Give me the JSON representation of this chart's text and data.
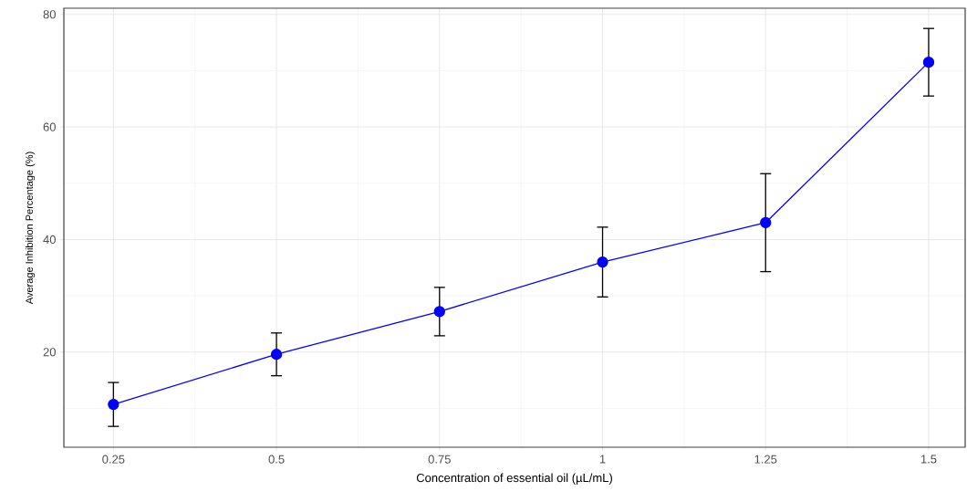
{
  "chart_data": {
    "type": "line",
    "xlabel": "Concentration of essential oil (µL/mL)",
    "ylabel": "Average Inhibition Percentage (%)",
    "x": [
      0.25,
      0.5,
      0.75,
      1,
      1.25,
      1.5
    ],
    "series": [
      {
        "color": "#0000ff",
        "values": [
          10.7,
          19.6,
          27.2,
          36.0,
          43.0,
          71.5
        ],
        "errors": [
          3.9,
          3.8,
          4.3,
          6.2,
          8.7,
          6.0
        ]
      }
    ],
    "xlim": [
      0.174,
      1.556
    ],
    "xticks": [
      0.25,
      0.5,
      0.75,
      1,
      1.25,
      1.5
    ],
    "ylim": [
      3.1,
      81.1
    ],
    "yticks": [
      20,
      40,
      60,
      80
    ],
    "grid": true,
    "marker": "circle",
    "line_style": "solid"
  }
}
